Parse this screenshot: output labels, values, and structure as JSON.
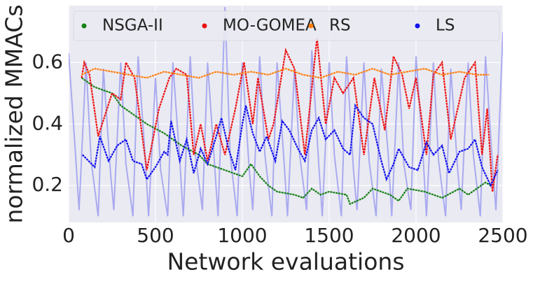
{
  "chart_data": {
    "type": "line",
    "x_label": "Network evaluations",
    "y_label": "normalized MMACs",
    "xlim": [
      0,
      2500
    ],
    "ylim": [
      0.08,
      0.785
    ],
    "xticks": [
      0,
      500,
      1000,
      1500,
      2000,
      2500
    ],
    "yticks": [
      0.2,
      0.4,
      0.6
    ],
    "grid": true,
    "legend": "top",
    "series": [
      {
        "color": "#aaaaf0",
        "x": [
          0,
          40,
          60,
          100,
          130,
          170,
          200,
          240,
          260,
          300,
          330,
          370,
          400,
          440,
          460,
          500,
          530,
          570,
          600,
          640,
          660,
          700,
          730,
          770,
          800,
          840,
          860,
          900,
          930,
          970,
          1000,
          1040,
          1060,
          1100,
          1130,
          1170,
          1200,
          1240,
          1260,
          1300,
          1330,
          1370,
          1400,
          1440,
          1460,
          1500,
          1530,
          1570,
          1600,
          1640,
          1660,
          1700,
          1730,
          1770,
          1800,
          1840,
          1860,
          1900,
          1930,
          1970,
          2000,
          2040,
          2060,
          2100,
          2130,
          2170,
          2200,
          2240,
          2260,
          2300,
          2330,
          2370,
          2400,
          2440,
          2460,
          2500
        ],
        "values": [
          0.63,
          0.3,
          0.12,
          0.6,
          0.28,
          0.1,
          0.58,
          0.25,
          0.12,
          0.6,
          0.27,
          0.1,
          0.62,
          0.3,
          0.1,
          0.55,
          0.25,
          0.1,
          0.6,
          0.28,
          0.1,
          0.62,
          0.3,
          0.12,
          0.6,
          0.27,
          0.1,
          0.78,
          0.3,
          0.1,
          0.6,
          0.25,
          0.12,
          0.62,
          0.3,
          0.1,
          0.6,
          0.28,
          0.1,
          0.58,
          0.3,
          0.12,
          0.64,
          0.27,
          0.1,
          0.6,
          0.3,
          0.1,
          0.62,
          0.25,
          0.12,
          0.6,
          0.28,
          0.1,
          0.58,
          0.3,
          0.1,
          0.6,
          0.27,
          0.12,
          0.62,
          0.3,
          0.1,
          0.6,
          0.28,
          0.1,
          0.58,
          0.25,
          0.12,
          0.6,
          0.3,
          0.1,
          0.62,
          0.27,
          0.12,
          0.7
        ]
      },
      {
        "name": "NSGA-II",
        "color": "#138013",
        "x": [
          75,
          150,
          250,
          300,
          400,
          450,
          550,
          650,
          750,
          800,
          900,
          950,
          1000,
          1050,
          1100,
          1150,
          1200,
          1300,
          1350,
          1400,
          1450,
          1500,
          1600,
          1620,
          1700,
          1750,
          1850,
          1900,
          1950,
          2050,
          2150,
          2250,
          2300,
          2400,
          2430
        ],
        "values": [
          0.55,
          0.52,
          0.5,
          0.46,
          0.42,
          0.4,
          0.37,
          0.33,
          0.3,
          0.27,
          0.25,
          0.24,
          0.23,
          0.27,
          0.23,
          0.2,
          0.18,
          0.17,
          0.16,
          0.19,
          0.17,
          0.18,
          0.17,
          0.14,
          0.16,
          0.19,
          0.17,
          0.15,
          0.19,
          0.18,
          0.16,
          0.19,
          0.17,
          0.21,
          0.2
        ]
      },
      {
        "name": "MO-GOMEA",
        "color": "#ee1111",
        "x": [
          75,
          90,
          120,
          170,
          250,
          300,
          330,
          380,
          450,
          520,
          580,
          620,
          680,
          720,
          760,
          800,
          850,
          900,
          960,
          1010,
          1060,
          1090,
          1150,
          1180,
          1250,
          1300,
          1360,
          1430,
          1480,
          1530,
          1580,
          1640,
          1700,
          1760,
          1820,
          1870,
          1920,
          1960,
          2000,
          2060,
          2100,
          2150,
          2200,
          2240,
          2280,
          2340,
          2380,
          2410,
          2440,
          2470
        ],
        "values": [
          0.55,
          0.6,
          0.56,
          0.36,
          0.5,
          0.48,
          0.6,
          0.55,
          0.25,
          0.45,
          0.55,
          0.58,
          0.56,
          0.3,
          0.4,
          0.28,
          0.4,
          0.3,
          0.45,
          0.6,
          0.4,
          0.55,
          0.35,
          0.4,
          0.64,
          0.58,
          0.3,
          0.68,
          0.4,
          0.55,
          0.5,
          0.55,
          0.3,
          0.55,
          0.38,
          0.62,
          0.56,
          0.45,
          0.55,
          0.3,
          0.56,
          0.6,
          0.35,
          0.45,
          0.55,
          0.6,
          0.3,
          0.45,
          0.18,
          0.3
        ]
      },
      {
        "name": "RS",
        "color": "#ff7f0e",
        "x": [
          75,
          150,
          250,
          350,
          450,
          550,
          650,
          750,
          850,
          950,
          1050,
          1150,
          1250,
          1350,
          1450,
          1550,
          1650,
          1750,
          1850,
          1950,
          2050,
          2150,
          2250,
          2350,
          2420
        ],
        "values": [
          0.56,
          0.58,
          0.57,
          0.56,
          0.55,
          0.57,
          0.56,
          0.55,
          0.57,
          0.56,
          0.57,
          0.56,
          0.58,
          0.56,
          0.55,
          0.57,
          0.56,
          0.58,
          0.56,
          0.57,
          0.58,
          0.56,
          0.57,
          0.56,
          0.56
        ]
      },
      {
        "name": "LS",
        "color": "#1111ee",
        "x": [
          80,
          150,
          180,
          230,
          280,
          330,
          370,
          420,
          450,
          500,
          550,
          570,
          590,
          640,
          680,
          720,
          760,
          800,
          850,
          880,
          920,
          960,
          1000,
          1020,
          1060,
          1100,
          1140,
          1190,
          1230,
          1270,
          1320,
          1360,
          1400,
          1440,
          1480,
          1530,
          1580,
          1620,
          1650,
          1700,
          1750,
          1800,
          1830,
          1870,
          1900,
          1960,
          2010,
          2060,
          2100,
          2150,
          2190,
          2250,
          2300,
          2340,
          2380,
          2430,
          2470
        ],
        "values": [
          0.3,
          0.26,
          0.36,
          0.28,
          0.33,
          0.35,
          0.28,
          0.27,
          0.22,
          0.26,
          0.31,
          0.3,
          0.41,
          0.28,
          0.35,
          0.24,
          0.32,
          0.27,
          0.36,
          0.42,
          0.32,
          0.25,
          0.4,
          0.46,
          0.37,
          0.31,
          0.36,
          0.28,
          0.41,
          0.38,
          0.32,
          0.28,
          0.38,
          0.42,
          0.35,
          0.38,
          0.32,
          0.3,
          0.46,
          0.42,
          0.4,
          0.28,
          0.22,
          0.27,
          0.32,
          0.26,
          0.25,
          0.34,
          0.3,
          0.33,
          0.24,
          0.31,
          0.32,
          0.35,
          0.26,
          0.2,
          0.25
        ]
      }
    ]
  }
}
